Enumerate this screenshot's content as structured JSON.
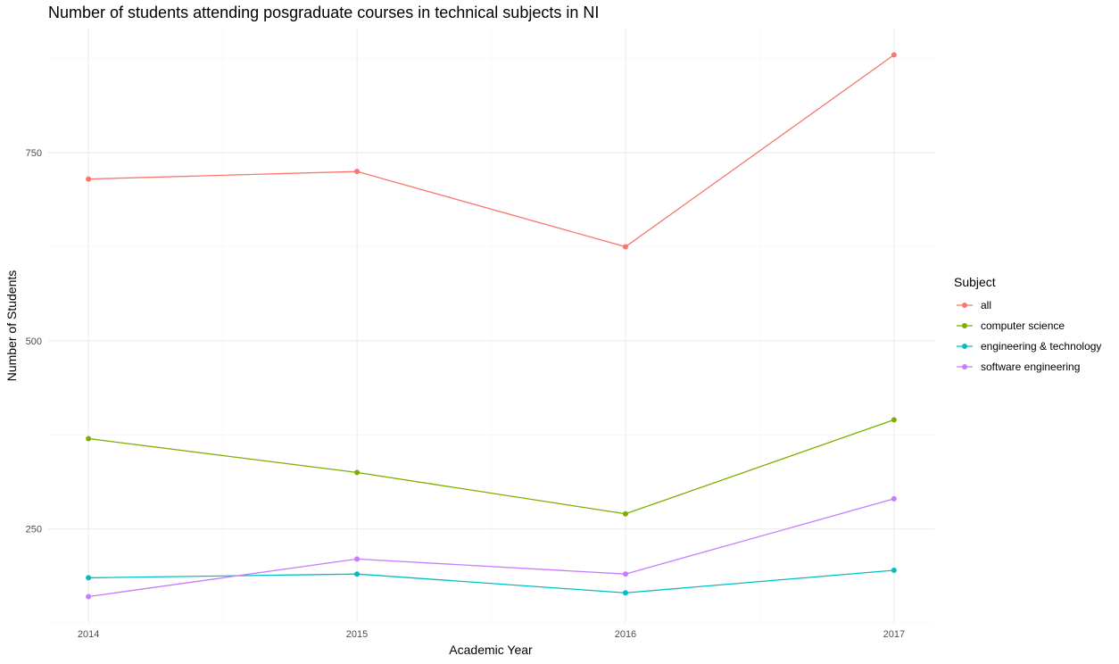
{
  "chart_data": {
    "type": "line",
    "title": "Number of students attending posgraduate courses in technical subjects in NI",
    "xlabel": "Academic Year",
    "ylabel": "Number of Students",
    "x": [
      2014,
      2015,
      2016,
      2017
    ],
    "x_tick_labels": [
      "2014",
      "2015",
      "2016",
      "2017"
    ],
    "y_ticks": [
      250,
      500,
      750
    ],
    "y_tick_labels": [
      "250",
      "500",
      "750"
    ],
    "xlim": [
      2013.85,
      2017.15
    ],
    "ylim": [
      125,
      915
    ],
    "grid": true,
    "legend_title": "Subject",
    "legend_position": "right",
    "series": [
      {
        "name": "all",
        "color": "#F8766D",
        "values": [
          715,
          725,
          625,
          880
        ]
      },
      {
        "name": "computer science",
        "color": "#7CAE00",
        "values": [
          370,
          325,
          270,
          395
        ]
      },
      {
        "name": "engineering & technology",
        "color": "#00BFC4",
        "values": [
          185,
          190,
          165,
          195
        ]
      },
      {
        "name": "software engineering",
        "color": "#C77CFF",
        "values": [
          160,
          210,
          190,
          290
        ]
      }
    ]
  }
}
